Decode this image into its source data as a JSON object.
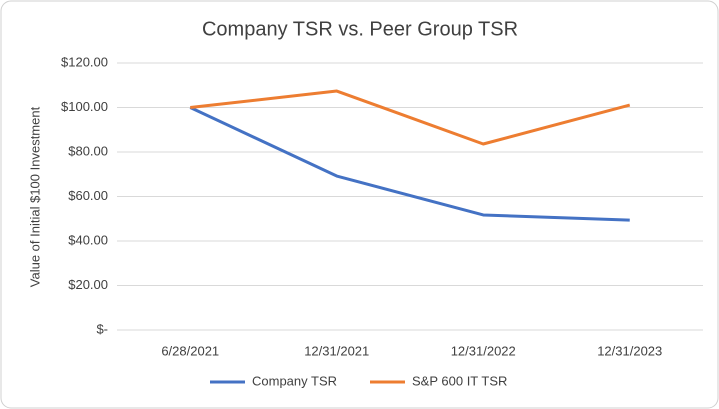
{
  "chart_data": {
    "type": "line",
    "title": "Company TSR vs. Peer Group TSR",
    "y_label": "Value of Initial $100 Investment",
    "categories": [
      "6/28/2021",
      "12/31/2021",
      "12/31/2022",
      "12/31/2023"
    ],
    "series": [
      {
        "name": "Company TSR",
        "color": "#4472c4",
        "values": [
          100,
          69.2,
          51.7,
          49.4
        ]
      },
      {
        "name": "S&P 600 IT TSR",
        "color": "#ed7d31",
        "values": [
          100,
          107.4,
          83.6,
          101.1
        ]
      }
    ],
    "ylim": [
      0,
      120
    ],
    "yticks": [
      {
        "value": 0,
        "label": "$-"
      },
      {
        "value": 20,
        "label": "$20.00"
      },
      {
        "value": 40,
        "label": "$40.00"
      },
      {
        "value": 60,
        "label": "$60.00"
      },
      {
        "value": 80,
        "label": "$80.00"
      },
      {
        "value": 100,
        "label": "$100.00"
      },
      {
        "value": 120,
        "label": "$120.00"
      }
    ],
    "grid": true,
    "legend": "bottom"
  }
}
